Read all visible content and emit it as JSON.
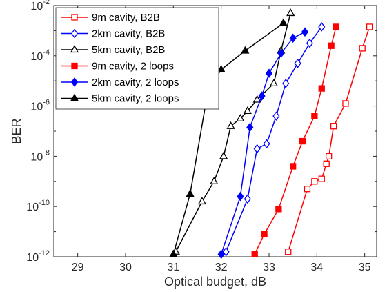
{
  "chart_data": {
    "type": "line",
    "title": "",
    "xlabel": "Optical budget, dB",
    "ylabel": "BER",
    "xlim": [
      28.5,
      35.25
    ],
    "ylim_exp": [
      -12,
      -2
    ],
    "y_scale": "log",
    "x_ticks": [
      "29",
      "30",
      "31",
      "32",
      "33",
      "34",
      "35"
    ],
    "y_ticks": [
      {
        "base": "10",
        "exp": "-12"
      },
      {
        "base": "10",
        "exp": "-10"
      },
      {
        "base": "10",
        "exp": "-8"
      },
      {
        "base": "10",
        "exp": "-6"
      },
      {
        "base": "10",
        "exp": "-4"
      },
      {
        "base": "10",
        "exp": "-2"
      }
    ],
    "grid": false,
    "legend_position": "top-left",
    "series": [
      {
        "name": "9m cavity, B2B",
        "color": "#ff0000",
        "marker": "square",
        "filled": false,
        "x": [
          33.4,
          33.8,
          33.95,
          34.1,
          34.2,
          34.25,
          34.35,
          34.6,
          34.95,
          35.1
        ],
        "y_exp": [
          -11.8,
          -9.3,
          -9.0,
          -8.9,
          -8.3,
          -8.0,
          -6.8,
          -5.9,
          -3.7,
          -2.85
        ]
      },
      {
        "name": "2km cavity, B2B",
        "color": "#0000ff",
        "marker": "diamond",
        "filled": false,
        "x": [
          32.1,
          32.55,
          32.75,
          32.95,
          33.15,
          33.35,
          33.6,
          33.85,
          34.1
        ],
        "y_exp": [
          -11.8,
          -9.7,
          -7.7,
          -7.5,
          -6.4,
          -5.1,
          -4.3,
          -3.5,
          -2.85
        ]
      },
      {
        "name": "5km cavity, B2B",
        "color": "#000000",
        "marker": "triangle",
        "filled": false,
        "x": [
          31.05,
          31.6,
          31.85,
          32.05,
          32.2,
          32.4,
          32.55,
          32.75,
          33.1,
          33.25,
          33.45
        ],
        "y_exp": [
          -11.8,
          -9.8,
          -9.0,
          -8.0,
          -6.8,
          -6.5,
          -6.2,
          -5.75,
          -5.1,
          -3.8,
          -2.3
        ]
      },
      {
        "name": "9m cavity, 2 loops",
        "color": "#ff0000",
        "marker": "square",
        "filled": true,
        "x": [
          32.7,
          32.9,
          33.2,
          33.5,
          33.7,
          33.95,
          34.1,
          34.3,
          34.4
        ],
        "y_exp": [
          -11.9,
          -11.1,
          -10.1,
          -8.4,
          -7.4,
          -6.4,
          -5.3,
          -3.6,
          -2.85
        ]
      },
      {
        "name": "2km cavity, 2 loops",
        "color": "#0000ff",
        "marker": "diamond",
        "filled": true,
        "x": [
          32.0,
          32.4,
          32.6,
          32.85,
          33.0,
          33.25,
          33.5,
          33.75
        ],
        "y_exp": [
          -11.9,
          -9.6,
          -6.85,
          -5.6,
          -4.7,
          -3.9,
          -3.3,
          -3.05
        ]
      },
      {
        "name": "5km cavity, 2 loops",
        "color": "#000000",
        "marker": "triangle",
        "filled": true,
        "x": [
          31.0,
          31.35,
          31.7,
          31.85,
          32.0,
          32.5,
          33.3
        ],
        "y_exp": [
          -11.9,
          -9.5,
          -5.65,
          -5.0,
          -4.55,
          -3.8,
          -2.7
        ]
      }
    ]
  }
}
